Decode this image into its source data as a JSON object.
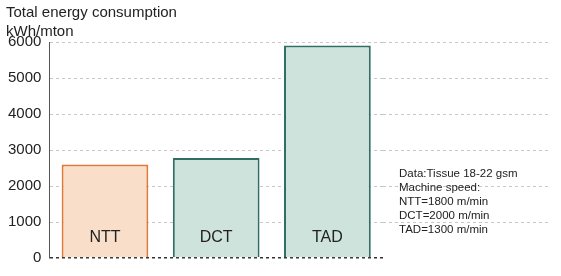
{
  "chart_data": {
    "type": "bar",
    "title": "Total energy consumption",
    "ylabel": "kWh/mton",
    "categories": [
      "NTT",
      "DCT",
      "TAD"
    ],
    "values": [
      2600,
      2780,
      5900
    ],
    "colors": [
      "#f9dfc9",
      "#cfe3dd",
      "#cfe3dd"
    ],
    "ylim": [
      0,
      6000
    ],
    "yticks": [
      0,
      1000,
      2000,
      3000,
      4000,
      5000,
      6000
    ],
    "grid": true,
    "tick_labels": "y",
    "annotations": [
      "Data:Tissue 18-22 gsm",
      "Machine speed:",
      "NTT=1800 m/min",
      "DCT=2000 m/min",
      "TAD=1300 m/min"
    ]
  }
}
